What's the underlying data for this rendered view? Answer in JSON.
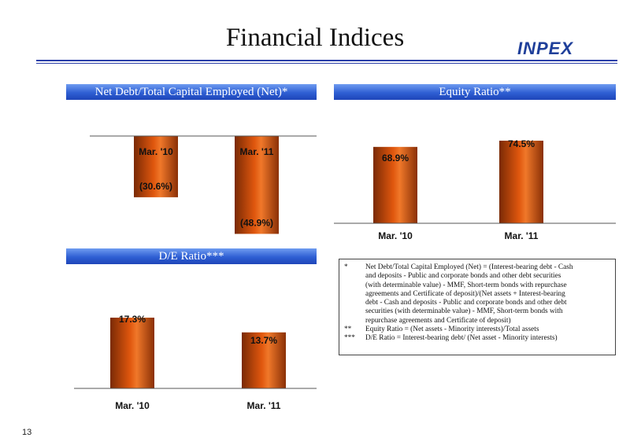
{
  "page": {
    "title": "Financial Indices",
    "logo": "INPEX",
    "page_number": "13"
  },
  "chart_data": [
    {
      "id": "net_debt",
      "type": "bar",
      "title": "Net Debt/Total Capital Employed (Net)*",
      "categories": [
        "Mar. '10",
        "Mar. '11"
      ],
      "values": [
        -30.6,
        -48.9
      ],
      "value_labels": [
        "(30.6%)",
        "(48.9%)"
      ],
      "ylim": [
        -55,
        0
      ],
      "grid": false,
      "color": "#e0570e"
    },
    {
      "id": "equity_ratio",
      "type": "bar",
      "title": "Equity Ratio**",
      "categories": [
        "Mar. '10",
        "Mar. '11"
      ],
      "values": [
        68.9,
        74.5
      ],
      "value_labels": [
        "68.9%",
        "74.5%"
      ],
      "ylim": [
        0,
        78
      ],
      "grid": false,
      "color": "#e0570e"
    },
    {
      "id": "de_ratio",
      "type": "bar",
      "title": "D/E Ratio***",
      "categories": [
        "Mar. '10",
        "Mar. '11"
      ],
      "values": [
        17.3,
        13.7
      ],
      "value_labels": [
        "17.3%",
        "13.7%"
      ],
      "ylim": [
        0,
        20
      ],
      "grid": false,
      "color": "#e0570e"
    }
  ],
  "notes": [
    {
      "mark": "*",
      "lines": [
        "Net Debt/Total Capital Employed (Net) = (Interest-bearing debt - Cash",
        "and deposits - Public and corporate bonds and other debt securities",
        "(with determinable value) - MMF, Short-term bonds with repurchase",
        "agreements and Certificate of deposit)/(Net assets + Interest-bearing",
        "debt - Cash and deposits - Public and corporate bonds and other debt",
        "securities (with determinable value) - MMF, Short-term bonds with",
        "repurchase agreements and Certificate of deposit)"
      ]
    },
    {
      "mark": "**",
      "lines": [
        "Equity Ratio = (Net assets - Minority interests)/Total assets"
      ]
    },
    {
      "mark": "***",
      "lines": [
        "D/E Ratio = Interest-bearing debt/ (Net asset - Minority interests)"
      ]
    }
  ]
}
